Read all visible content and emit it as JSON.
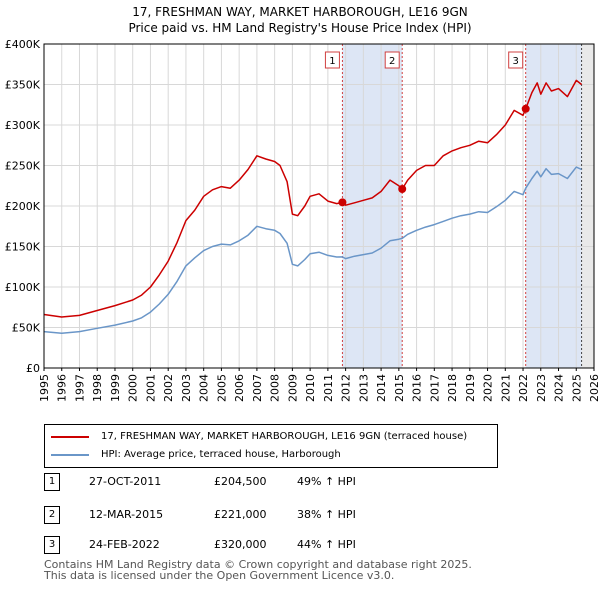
{
  "header": {
    "line1": "17, FRESHMAN WAY, MARKET HARBOROUGH, LE16 9GN",
    "line2": "Price paid vs. HM Land Registry's House Price Index (HPI)"
  },
  "chart_data": {
    "type": "line",
    "title": "17, FRESHMAN WAY, MARKET HARBOROUGH, LE16 9GN — Price paid vs. HM Land Registry's House Price Index (HPI)",
    "ylim": [
      0,
      400000
    ],
    "xlim": [
      1995,
      2026
    ],
    "y_ticks": [
      {
        "value": 0,
        "label": "£0"
      },
      {
        "value": 50000,
        "label": "£50K"
      },
      {
        "value": 100000,
        "label": "£100K"
      },
      {
        "value": 150000,
        "label": "£150K"
      },
      {
        "value": 200000,
        "label": "£200K"
      },
      {
        "value": 250000,
        "label": "£250K"
      },
      {
        "value": 300000,
        "label": "£300K"
      },
      {
        "value": 350000,
        "label": "£350K"
      },
      {
        "value": 400000,
        "label": "£400K"
      }
    ],
    "x_ticks": [
      "1995",
      "1996",
      "1997",
      "1998",
      "1999",
      "2000",
      "2001",
      "2002",
      "2003",
      "2004",
      "2005",
      "2006",
      "2007",
      "2008",
      "2009",
      "2010",
      "2011",
      "2012",
      "2013",
      "2014",
      "2015",
      "2016",
      "2017",
      "2018",
      "2019",
      "2020",
      "2021",
      "2022",
      "2023",
      "2024",
      "2025",
      "2026"
    ],
    "grid": true,
    "series": [
      {
        "name": "17, FRESHMAN WAY, MARKET HARBOROUGH, LE16 9GN (terraced house)",
        "color": "#cc0000",
        "x": [
          1995,
          1996,
          1997,
          1998,
          1999,
          2000,
          2000.5,
          2001,
          2001.5,
          2002,
          2002.5,
          2003,
          2003.5,
          2004,
          2004.5,
          2005,
          2005.5,
          2006,
          2006.5,
          2007,
          2007.5,
          2008,
          2008.3,
          2008.7,
          2009,
          2009.3,
          2009.7,
          2010,
          2010.5,
          2011,
          2011.5,
          2011.82,
          2012,
          2012.5,
          2013,
          2013.5,
          2014,
          2014.5,
          2015,
          2015.19,
          2015.5,
          2016,
          2016.5,
          2017,
          2017.5,
          2018,
          2018.5,
          2019,
          2019.5,
          2020,
          2020.5,
          2021,
          2021.5,
          2022,
          2022.15,
          2022.5,
          2022.8,
          2023,
          2023.3,
          2023.6,
          2024,
          2024.5,
          2025,
          2025.3
        ],
        "values": [
          66000,
          63000,
          65000,
          71000,
          77000,
          84000,
          90000,
          100000,
          115000,
          132000,
          155000,
          182000,
          195000,
          212000,
          220000,
          224000,
          222000,
          232000,
          245000,
          262000,
          258000,
          255000,
          250000,
          230000,
          190000,
          188000,
          200000,
          212000,
          215000,
          206000,
          203000,
          204500,
          201000,
          204000,
          207000,
          210000,
          218000,
          232000,
          225000,
          221000,
          232000,
          244000,
          250000,
          250000,
          262000,
          268000,
          272000,
          275000,
          280000,
          278000,
          288000,
          300000,
          318000,
          312000,
          320000,
          340000,
          352000,
          338000,
          352000,
          342000,
          345000,
          335000,
          355000,
          350000
        ]
      },
      {
        "name": "HPI: Average price, terraced house, Harborough",
        "color": "#6a96c8",
        "x": [
          1995,
          1996,
          1997,
          1998,
          1999,
          2000,
          2000.5,
          2001,
          2001.5,
          2002,
          2002.5,
          2003,
          2003.5,
          2004,
          2004.5,
          2005,
          2005.5,
          2006,
          2006.5,
          2007,
          2007.5,
          2008,
          2008.3,
          2008.7,
          2009,
          2009.3,
          2009.7,
          2010,
          2010.5,
          2011,
          2011.5,
          2011.82,
          2012,
          2012.5,
          2013,
          2013.5,
          2014,
          2014.5,
          2015,
          2015.19,
          2015.5,
          2016,
          2016.5,
          2017,
          2017.5,
          2018,
          2018.5,
          2019,
          2019.5,
          2020,
          2020.5,
          2021,
          2021.5,
          2022,
          2022.15,
          2022.5,
          2022.8,
          2023,
          2023.3,
          2023.6,
          2024,
          2024.5,
          2025,
          2025.3
        ],
        "values": [
          45000,
          43000,
          45000,
          49000,
          53000,
          58000,
          62000,
          69000,
          79000,
          91000,
          107000,
          126000,
          136000,
          145000,
          150000,
          153000,
          152000,
          157000,
          164000,
          175000,
          172000,
          170000,
          166000,
          154000,
          128000,
          126000,
          134000,
          141000,
          143000,
          139000,
          137000,
          137200,
          135000,
          138000,
          140000,
          142000,
          148000,
          157000,
          159000,
          160000,
          165000,
          170000,
          174000,
          177000,
          181000,
          185000,
          188000,
          190000,
          193000,
          192000,
          199000,
          207000,
          218000,
          214000,
          222000,
          234000,
          243000,
          236000,
          246000,
          239000,
          240000,
          234000,
          248000,
          245000
        ]
      }
    ],
    "sales": [
      {
        "label": "1",
        "x": 2011.82,
        "value": 204500
      },
      {
        "label": "2",
        "x": 2015.19,
        "value": 221000
      },
      {
        "label": "3",
        "x": 2022.15,
        "value": 320000
      }
    ],
    "highlight_bands": [
      {
        "from": 2011.82,
        "to": 2015.19
      },
      {
        "from": 2022.15,
        "to": 2025.3
      }
    ],
    "forecast_from": 2025.3
  },
  "legend": {
    "items": [
      {
        "label": "17, FRESHMAN WAY, MARKET HARBOROUGH, LE16 9GN (terraced house)",
        "color": "#cc0000"
      },
      {
        "label": "HPI: Average price, terraced house, Harborough",
        "color": "#6a96c8"
      }
    ]
  },
  "transactions": [
    {
      "num": "1",
      "date": "27-OCT-2011",
      "price": "£204,500",
      "hpi": "49% ↑ HPI"
    },
    {
      "num": "2",
      "date": "12-MAR-2015",
      "price": "£221,000",
      "hpi": "38% ↑ HPI"
    },
    {
      "num": "3",
      "date": "24-FEB-2022",
      "price": "£320,000",
      "hpi": "44% ↑ HPI"
    }
  ],
  "footer": {
    "line1": "Contains HM Land Registry data © Crown copyright and database right 2025.",
    "line2": "This data is licensed under the Open Government Licence v3.0."
  }
}
